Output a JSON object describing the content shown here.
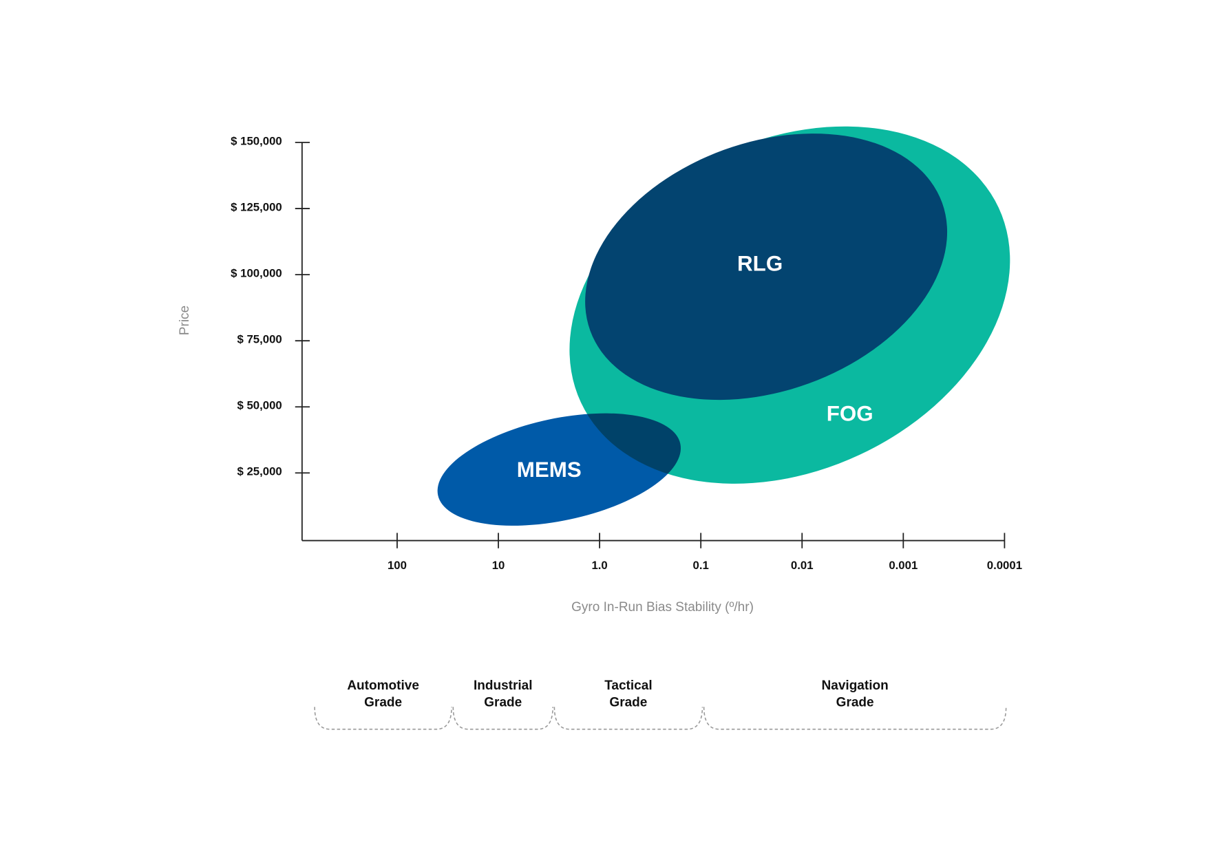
{
  "chart_data": {
    "type": "ellipse",
    "x_label": "Gyro In-Run Bias Stability (º/hr)",
    "y_label": "Price",
    "xscale": "log",
    "xlim": [
      1000,
      0.0001
    ],
    "xticks": [
      100,
      10,
      {
        "value": 1,
        "label": "1.0"
      },
      0.1,
      0.01,
      0.001,
      0.0001
    ],
    "ylim": [
      0,
      150000
    ],
    "yticks": [
      {
        "value": 25000,
        "label": "$ 25,000"
      },
      {
        "value": 50000,
        "label": "$ 50,000"
      },
      {
        "value": 75000,
        "label": "$ 75,000"
      },
      {
        "value": 100000,
        "label": "$ 100,000"
      },
      {
        "value": 125000,
        "label": "$ 125,000"
      },
      {
        "value": 150000,
        "label": "$ 150,000"
      }
    ],
    "series": [
      {
        "name": "FOG",
        "color": "#0bb9a0",
        "x": [
          2.5,
          7e-05
        ],
        "y": [
          26000,
          151000
        ],
        "tilt": -25
      },
      {
        "name": "RLG",
        "color": "#034470",
        "x": [
          1.6,
          0.00032
        ],
        "y": [
          56000,
          150000
        ],
        "tilt": -20
      },
      {
        "name": "MEMS",
        "color": "#005aa8",
        "x": [
          42,
          0.15
        ],
        "y": [
          7000,
          45600
        ],
        "tilt": -12,
        "blend": "multiply"
      }
    ],
    "grades": [
      {
        "label": [
          "Automotive",
          "Grade"
        ],
        "x": [
          700,
          30
        ]
      },
      {
        "label": [
          "Industrial",
          "Grade"
        ],
        "x": [
          30,
          3
        ]
      },
      {
        "label": [
          "Tactical",
          "Grade"
        ],
        "x": [
          3,
          0.1
        ]
      },
      {
        "label": [
          "Navigation",
          "Grade"
        ],
        "x": [
          0.1,
          0.0001
        ]
      }
    ]
  }
}
